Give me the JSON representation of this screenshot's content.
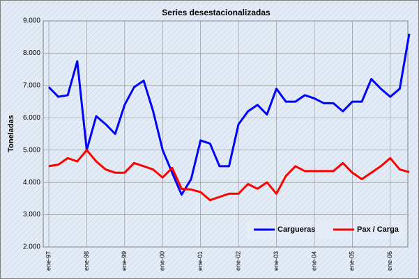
{
  "chart_data": {
    "type": "line",
    "title": "Series desestacionalizadas",
    "y_label": "Toneladas",
    "categories": [
      "ene-97",
      null,
      null,
      null,
      "ene-98",
      null,
      null,
      null,
      "ene-99",
      null,
      null,
      null,
      "ene-00",
      null,
      null,
      null,
      "ene-01",
      null,
      null,
      null,
      "ene-02",
      null,
      null,
      null,
      "ene-03",
      null,
      null,
      null,
      "ene-04",
      null,
      null,
      null,
      "ene-05",
      null,
      null,
      null,
      "ene-06",
      null,
      null
    ],
    "series": [
      {
        "name": "Cargueras",
        "color": "#0000ff",
        "values": [
          6950,
          6650,
          6700,
          7750,
          5000,
          6050,
          5800,
          5500,
          6400,
          6950,
          7150,
          6200,
          5000,
          4300,
          3620,
          4100,
          5300,
          5200,
          4500,
          4500,
          5800,
          6200,
          6400,
          6100,
          6900,
          6500,
          6500,
          6700,
          6600,
          6450,
          6450,
          6200,
          6500,
          6500,
          7200,
          6900,
          6650,
          6900,
          8600
        ]
      },
      {
        "name": "Pax / Carga",
        "color": "#ff0000",
        "values": [
          4500,
          4550,
          4750,
          4650,
          5000,
          4650,
          4400,
          4300,
          4300,
          4600,
          4500,
          4400,
          4150,
          4450,
          3800,
          3780,
          3700,
          3450,
          3550,
          3650,
          3650,
          3950,
          3800,
          4000,
          3650,
          4200,
          4500,
          4350,
          4350,
          4350,
          4350,
          4600,
          4300,
          4100,
          4300,
          4500,
          4750,
          4400,
          4320
        ]
      }
    ],
    "ylim": [
      2000,
      9000
    ],
    "yticks": [
      {
        "value": 2000,
        "label": "2.000"
      },
      {
        "value": 3000,
        "label": "3.000"
      },
      {
        "value": 4000,
        "label": "4.000"
      },
      {
        "value": 5000,
        "label": "5.000"
      },
      {
        "value": 6000,
        "label": "6.000"
      },
      {
        "value": 7000,
        "label": "7.000"
      },
      {
        "value": 8000,
        "label": "8.000"
      },
      {
        "value": 9000,
        "label": "9.000"
      }
    ],
    "grid": true,
    "legend": "lower right"
  }
}
